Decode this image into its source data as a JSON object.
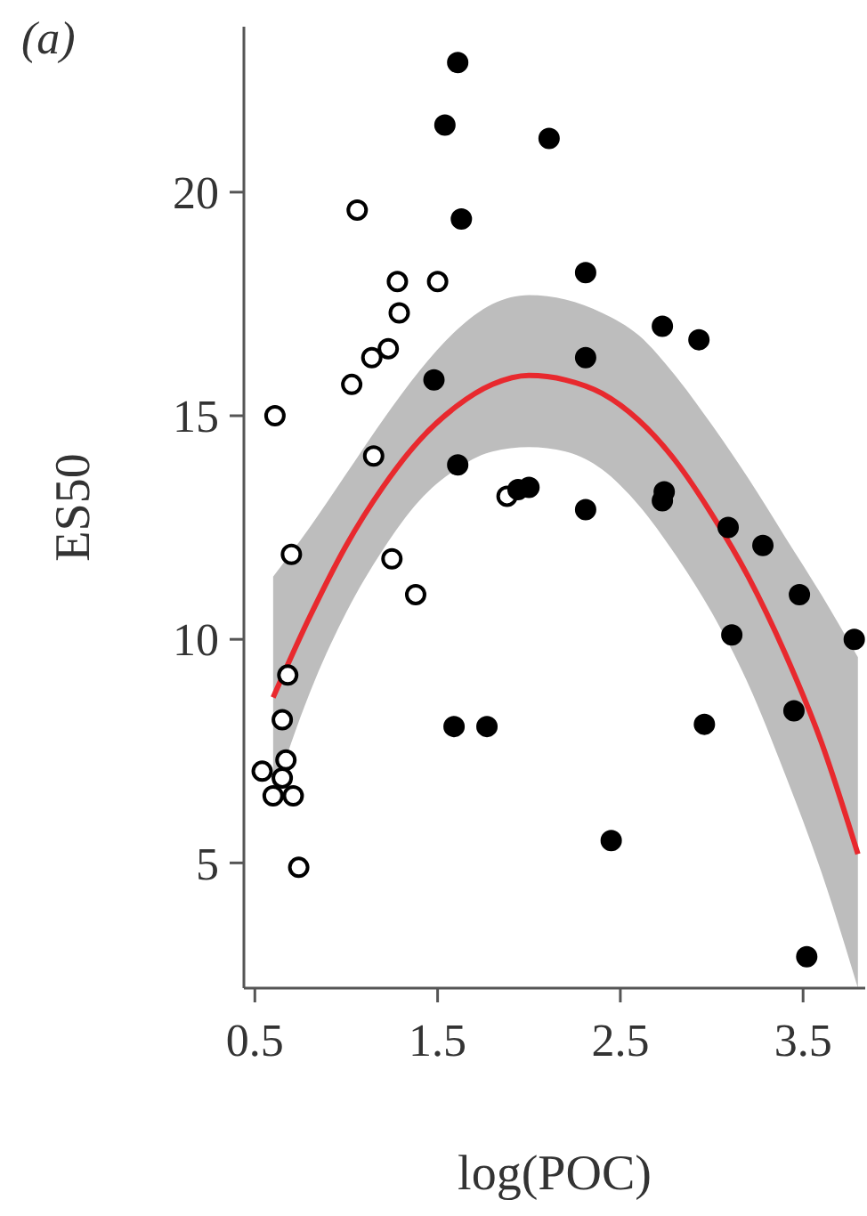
{
  "chart_data": {
    "type": "scatter",
    "xlabel": "log(POC)",
    "ylabel": "ES50",
    "annotations": [
      "(a)"
    ],
    "xlim": [
      0.44,
      3.84
    ],
    "ylim": [
      2.2,
      23.7
    ],
    "xticks": [
      0.5,
      1.5,
      2.5,
      3.5
    ],
    "yticks": [
      5,
      10,
      15,
      20
    ],
    "grid": false,
    "series": [
      {
        "color": "#ffffff",
        "marker": "circle",
        "x": [
          1.06,
          1.28,
          1.5,
          1.29,
          1.23,
          1.14,
          1.03,
          0.61,
          1.15,
          0.7,
          1.25,
          1.38,
          0.68,
          0.65,
          0.67,
          0.54,
          0.65,
          0.6,
          0.71,
          0.74,
          1.88
        ],
        "values": [
          19.6,
          18.0,
          18.0,
          17.3,
          16.5,
          16.3,
          15.7,
          15.0,
          14.1,
          11.9,
          11.8,
          11.0,
          9.2,
          8.2,
          7.3,
          7.05,
          6.9,
          6.5,
          6.5,
          4.9,
          13.2
        ]
      },
      {
        "color": "#000000",
        "marker": "circle",
        "x": [
          1.61,
          1.54,
          2.11,
          1.63,
          1.48,
          1.61,
          1.94,
          2.0,
          2.31,
          2.73,
          2.93,
          2.31,
          2.74,
          2.31,
          2.73,
          3.09,
          3.28,
          3.48,
          3.11,
          3.78,
          3.45,
          2.96,
          2.45,
          3.52,
          1.59,
          1.77
        ],
        "values": [
          22.9,
          21.5,
          21.2,
          19.4,
          15.8,
          13.9,
          13.35,
          13.4,
          18.2,
          17.0,
          16.7,
          16.3,
          13.3,
          12.9,
          13.1,
          12.5,
          12.1,
          11.0,
          10.1,
          10.0,
          8.4,
          8.1,
          5.5,
          2.9,
          8.05,
          8.05
        ]
      },
      {
        "type": "line",
        "color": "#e8292e",
        "x": [
          0.6,
          0.8,
          1.0,
          1.2,
          1.4,
          1.6,
          1.8,
          2.0,
          2.2,
          2.4,
          2.6,
          2.8,
          3.0,
          3.2,
          3.4,
          3.6,
          3.8
        ],
        "values": [
          8.7,
          10.5,
          12.1,
          13.4,
          14.45,
          15.2,
          15.7,
          15.9,
          15.8,
          15.5,
          14.9,
          14.0,
          12.8,
          11.4,
          9.7,
          7.7,
          5.2
        ],
        "upper": [
          11.4,
          12.5,
          13.7,
          14.9,
          16.0,
          16.9,
          17.5,
          17.7,
          17.6,
          17.3,
          16.8,
          15.9,
          14.8,
          13.6,
          12.3,
          11.0,
          9.6
        ],
        "lower": [
          6.5,
          8.8,
          10.6,
          12.0,
          13.1,
          13.8,
          14.2,
          14.3,
          14.2,
          13.8,
          13.0,
          11.9,
          10.6,
          9.0,
          7.0,
          4.8,
          2.2
        ]
      }
    ]
  }
}
